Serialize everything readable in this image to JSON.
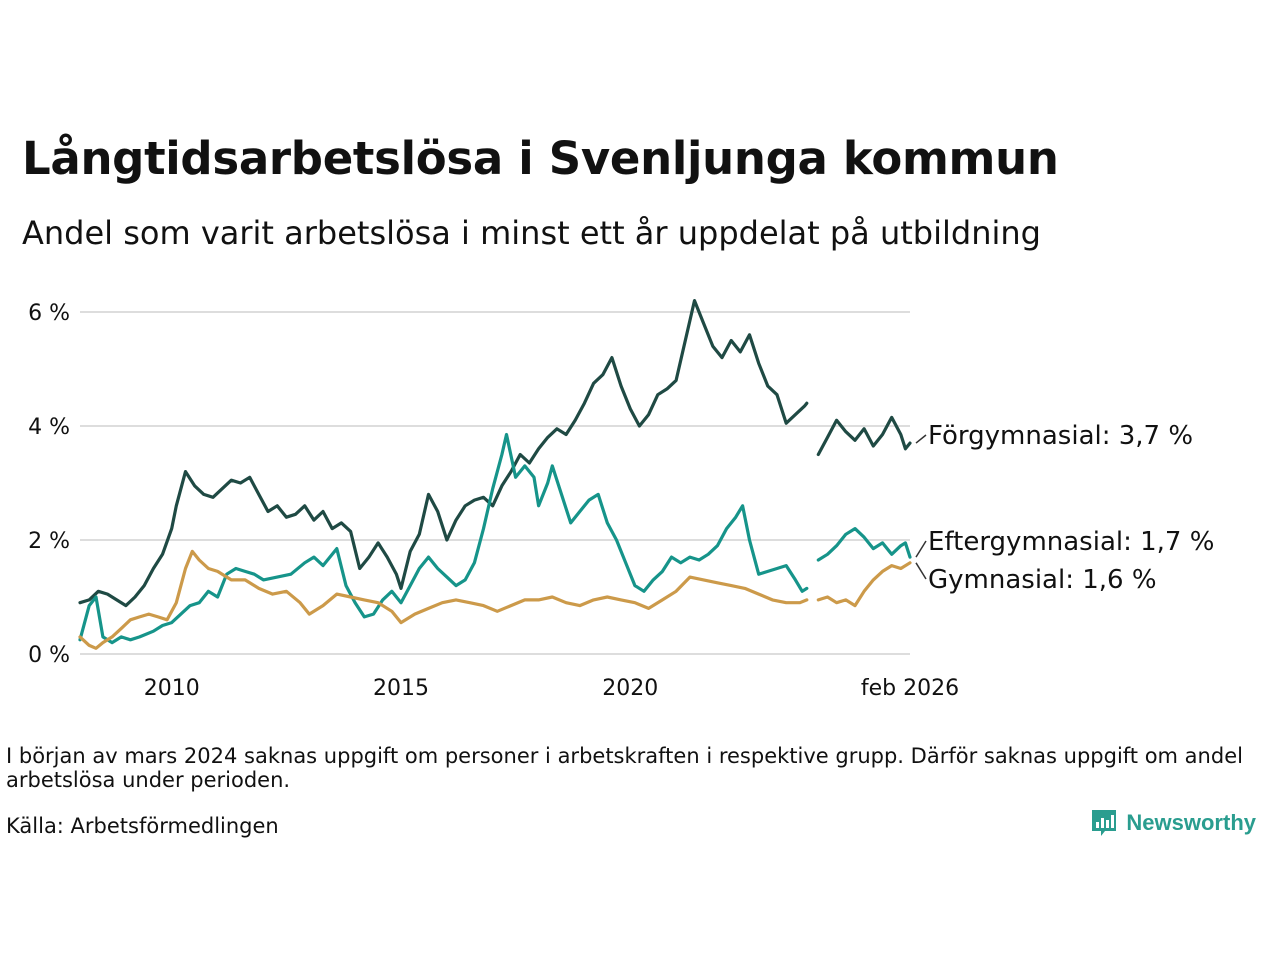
{
  "title": "Långtidsarbetslösa i Svenljunga kommun",
  "subtitle": "Andel som varit arbetslösa i minst ett år uppdelat på utbildning",
  "footnote": "I början av mars 2024 saknas uppgift om personer i arbetskraften i respektive grupp. Därför saknas uppgift om andel arbetslösa under perioden.",
  "source": "Källa: Arbetsförmedlingen",
  "brand": "Newsworthy",
  "colors": {
    "forgymnasial": "#1f4a44",
    "eftergymnasial": "#16948a",
    "gymnasial": "#cc9a4a",
    "grid": "#dddddd",
    "brand": "#2a9d8f"
  },
  "chart_data": {
    "type": "line",
    "title": "Långtidsarbetslösa i Svenljunga kommun",
    "subtitle": "Andel som varit arbetslösa i minst ett år uppdelat på utbildning",
    "xlabel": "",
    "ylabel": "",
    "xlim": [
      2008.0,
      2026.1
    ],
    "ylim": [
      0,
      6
    ],
    "grid": true,
    "y_ticks": [
      {
        "value": 0,
        "label": "0 %"
      },
      {
        "value": 2,
        "label": "2 %"
      },
      {
        "value": 4,
        "label": "4 %"
      },
      {
        "value": 6,
        "label": "6 %"
      }
    ],
    "x_ticks": [
      {
        "value": 2010,
        "label": "2010"
      },
      {
        "value": 2015,
        "label": "2015"
      },
      {
        "value": 2020,
        "label": "2020"
      },
      {
        "value": 2026.1,
        "label": "feb 2026"
      }
    ],
    "series": [
      {
        "name": "Förgymnasial",
        "end_label": "Förgymnasial: 3,7 %",
        "color": "#1f4a44",
        "points": [
          [
            2008.0,
            0.9
          ],
          [
            2008.2,
            0.95
          ],
          [
            2008.4,
            1.1
          ],
          [
            2008.6,
            1.05
          ],
          [
            2008.8,
            0.95
          ],
          [
            2009.0,
            0.85
          ],
          [
            2009.2,
            1.0
          ],
          [
            2009.4,
            1.2
          ],
          [
            2009.6,
            1.5
          ],
          [
            2009.8,
            1.75
          ],
          [
            2010.0,
            2.2
          ],
          [
            2010.1,
            2.6
          ],
          [
            2010.3,
            3.2
          ],
          [
            2010.5,
            2.95
          ],
          [
            2010.7,
            2.8
          ],
          [
            2010.9,
            2.75
          ],
          [
            2011.1,
            2.9
          ],
          [
            2011.3,
            3.05
          ],
          [
            2011.5,
            3.0
          ],
          [
            2011.7,
            3.1
          ],
          [
            2011.9,
            2.8
          ],
          [
            2012.1,
            2.5
          ],
          [
            2012.3,
            2.6
          ],
          [
            2012.5,
            2.4
          ],
          [
            2012.7,
            2.45
          ],
          [
            2012.9,
            2.6
          ],
          [
            2013.1,
            2.35
          ],
          [
            2013.3,
            2.5
          ],
          [
            2013.5,
            2.2
          ],
          [
            2013.7,
            2.3
          ],
          [
            2013.9,
            2.15
          ],
          [
            2014.1,
            1.5
          ],
          [
            2014.3,
            1.7
          ],
          [
            2014.5,
            1.95
          ],
          [
            2014.7,
            1.7
          ],
          [
            2014.9,
            1.4
          ],
          [
            2015.0,
            1.15
          ],
          [
            2015.2,
            1.8
          ],
          [
            2015.4,
            2.1
          ],
          [
            2015.6,
            2.8
          ],
          [
            2015.8,
            2.5
          ],
          [
            2016.0,
            2.0
          ],
          [
            2016.2,
            2.35
          ],
          [
            2016.4,
            2.6
          ],
          [
            2016.6,
            2.7
          ],
          [
            2016.8,
            2.75
          ],
          [
            2017.0,
            2.6
          ],
          [
            2017.2,
            2.95
          ],
          [
            2017.4,
            3.2
          ],
          [
            2017.6,
            3.5
          ],
          [
            2017.8,
            3.35
          ],
          [
            2018.0,
            3.6
          ],
          [
            2018.2,
            3.8
          ],
          [
            2018.4,
            3.95
          ],
          [
            2018.6,
            3.85
          ],
          [
            2018.8,
            4.1
          ],
          [
            2019.0,
            4.4
          ],
          [
            2019.2,
            4.75
          ],
          [
            2019.4,
            4.9
          ],
          [
            2019.6,
            5.2
          ],
          [
            2019.8,
            4.7
          ],
          [
            2020.0,
            4.3
          ],
          [
            2020.2,
            4.0
          ],
          [
            2020.4,
            4.2
          ],
          [
            2020.6,
            4.55
          ],
          [
            2020.8,
            4.65
          ],
          [
            2021.0,
            4.8
          ],
          [
            2021.2,
            5.5
          ],
          [
            2021.4,
            6.2
          ],
          [
            2021.6,
            5.8
          ],
          [
            2021.8,
            5.4
          ],
          [
            2022.0,
            5.2
          ],
          [
            2022.2,
            5.5
          ],
          [
            2022.4,
            5.3
          ],
          [
            2022.6,
            5.6
          ],
          [
            2022.8,
            5.1
          ],
          [
            2023.0,
            4.7
          ],
          [
            2023.2,
            4.55
          ],
          [
            2023.4,
            4.05
          ],
          [
            2023.6,
            4.2
          ],
          [
            2023.8,
            4.35
          ],
          [
            2023.85,
            4.4
          ],
          null,
          [
            2024.1,
            3.5
          ],
          [
            2024.3,
            3.8
          ],
          [
            2024.5,
            4.1
          ],
          [
            2024.7,
            3.9
          ],
          [
            2024.9,
            3.75
          ],
          [
            2025.1,
            3.95
          ],
          [
            2025.3,
            3.65
          ],
          [
            2025.5,
            3.85
          ],
          [
            2025.7,
            4.15
          ],
          [
            2025.9,
            3.85
          ],
          [
            2026.0,
            3.6
          ],
          [
            2026.1,
            3.7
          ]
        ]
      },
      {
        "name": "Eftergymnasial",
        "end_label": "Eftergymnasial: 1,7 %",
        "color": "#16948a",
        "points": [
          [
            2008.0,
            0.25
          ],
          [
            2008.2,
            0.85
          ],
          [
            2008.35,
            1.0
          ],
          [
            2008.5,
            0.3
          ],
          [
            2008.7,
            0.2
          ],
          [
            2008.9,
            0.3
          ],
          [
            2009.1,
            0.25
          ],
          [
            2009.3,
            0.3
          ],
          [
            2009.6,
            0.4
          ],
          [
            2009.8,
            0.5
          ],
          [
            2010.0,
            0.55
          ],
          [
            2010.2,
            0.7
          ],
          [
            2010.4,
            0.85
          ],
          [
            2010.6,
            0.9
          ],
          [
            2010.8,
            1.1
          ],
          [
            2011.0,
            1.0
          ],
          [
            2011.2,
            1.4
          ],
          [
            2011.4,
            1.5
          ],
          [
            2011.6,
            1.45
          ],
          [
            2011.8,
            1.4
          ],
          [
            2012.0,
            1.3
          ],
          [
            2012.3,
            1.35
          ],
          [
            2012.6,
            1.4
          ],
          [
            2012.9,
            1.6
          ],
          [
            2013.1,
            1.7
          ],
          [
            2013.3,
            1.55
          ],
          [
            2013.6,
            1.85
          ],
          [
            2013.8,
            1.2
          ],
          [
            2014.0,
            0.9
          ],
          [
            2014.2,
            0.65
          ],
          [
            2014.4,
            0.7
          ],
          [
            2014.6,
            0.95
          ],
          [
            2014.8,
            1.1
          ],
          [
            2015.0,
            0.9
          ],
          [
            2015.2,
            1.2
          ],
          [
            2015.4,
            1.5
          ],
          [
            2015.6,
            1.7
          ],
          [
            2015.8,
            1.5
          ],
          [
            2016.0,
            1.35
          ],
          [
            2016.2,
            1.2
          ],
          [
            2016.4,
            1.3
          ],
          [
            2016.6,
            1.6
          ],
          [
            2016.8,
            2.2
          ],
          [
            2017.0,
            2.9
          ],
          [
            2017.2,
            3.5
          ],
          [
            2017.3,
            3.85
          ],
          [
            2017.5,
            3.1
          ],
          [
            2017.7,
            3.3
          ],
          [
            2017.9,
            3.1
          ],
          [
            2018.0,
            2.6
          ],
          [
            2018.2,
            3.0
          ],
          [
            2018.3,
            3.3
          ],
          [
            2018.5,
            2.8
          ],
          [
            2018.7,
            2.3
          ],
          [
            2018.9,
            2.5
          ],
          [
            2019.1,
            2.7
          ],
          [
            2019.3,
            2.8
          ],
          [
            2019.5,
            2.3
          ],
          [
            2019.7,
            2.0
          ],
          [
            2019.9,
            1.6
          ],
          [
            2020.1,
            1.2
          ],
          [
            2020.3,
            1.1
          ],
          [
            2020.5,
            1.3
          ],
          [
            2020.7,
            1.45
          ],
          [
            2020.9,
            1.7
          ],
          [
            2021.1,
            1.6
          ],
          [
            2021.3,
            1.7
          ],
          [
            2021.5,
            1.65
          ],
          [
            2021.7,
            1.75
          ],
          [
            2021.9,
            1.9
          ],
          [
            2022.1,
            2.2
          ],
          [
            2022.3,
            2.4
          ],
          [
            2022.45,
            2.6
          ],
          [
            2022.6,
            2.0
          ],
          [
            2022.8,
            1.4
          ],
          [
            2023.0,
            1.45
          ],
          [
            2023.2,
            1.5
          ],
          [
            2023.4,
            1.55
          ],
          [
            2023.6,
            1.3
          ],
          [
            2023.75,
            1.1
          ],
          [
            2023.85,
            1.15
          ],
          null,
          [
            2024.1,
            1.65
          ],
          [
            2024.3,
            1.75
          ],
          [
            2024.5,
            1.9
          ],
          [
            2024.7,
            2.1
          ],
          [
            2024.9,
            2.2
          ],
          [
            2025.1,
            2.05
          ],
          [
            2025.3,
            1.85
          ],
          [
            2025.5,
            1.95
          ],
          [
            2025.7,
            1.75
          ],
          [
            2025.9,
            1.9
          ],
          [
            2026.0,
            1.95
          ],
          [
            2026.1,
            1.7
          ]
        ]
      },
      {
        "name": "Gymnasial",
        "end_label": "Gymnasial: 1,6 %",
        "color": "#cc9a4a",
        "points": [
          [
            2008.0,
            0.3
          ],
          [
            2008.2,
            0.15
          ],
          [
            2008.35,
            0.1
          ],
          [
            2008.5,
            0.2
          ],
          [
            2008.7,
            0.3
          ],
          [
            2008.9,
            0.45
          ],
          [
            2009.1,
            0.6
          ],
          [
            2009.3,
            0.65
          ],
          [
            2009.5,
            0.7
          ],
          [
            2009.7,
            0.65
          ],
          [
            2009.9,
            0.6
          ],
          [
            2010.1,
            0.9
          ],
          [
            2010.3,
            1.5
          ],
          [
            2010.45,
            1.8
          ],
          [
            2010.6,
            1.65
          ],
          [
            2010.8,
            1.5
          ],
          [
            2011.0,
            1.45
          ],
          [
            2011.3,
            1.3
          ],
          [
            2011.6,
            1.3
          ],
          [
            2011.9,
            1.15
          ],
          [
            2012.2,
            1.05
          ],
          [
            2012.5,
            1.1
          ],
          [
            2012.8,
            0.9
          ],
          [
            2013.0,
            0.7
          ],
          [
            2013.3,
            0.85
          ],
          [
            2013.6,
            1.05
          ],
          [
            2013.9,
            1.0
          ],
          [
            2014.2,
            0.95
          ],
          [
            2014.5,
            0.9
          ],
          [
            2014.8,
            0.75
          ],
          [
            2015.0,
            0.55
          ],
          [
            2015.3,
            0.7
          ],
          [
            2015.6,
            0.8
          ],
          [
            2015.9,
            0.9
          ],
          [
            2016.2,
            0.95
          ],
          [
            2016.5,
            0.9
          ],
          [
            2016.8,
            0.85
          ],
          [
            2017.1,
            0.75
          ],
          [
            2017.4,
            0.85
          ],
          [
            2017.7,
            0.95
          ],
          [
            2018.0,
            0.95
          ],
          [
            2018.3,
            1.0
          ],
          [
            2018.6,
            0.9
          ],
          [
            2018.9,
            0.85
          ],
          [
            2019.2,
            0.95
          ],
          [
            2019.5,
            1.0
          ],
          [
            2019.8,
            0.95
          ],
          [
            2020.1,
            0.9
          ],
          [
            2020.4,
            0.8
          ],
          [
            2020.7,
            0.95
          ],
          [
            2021.0,
            1.1
          ],
          [
            2021.3,
            1.35
          ],
          [
            2021.6,
            1.3
          ],
          [
            2021.9,
            1.25
          ],
          [
            2022.2,
            1.2
          ],
          [
            2022.5,
            1.15
          ],
          [
            2022.8,
            1.05
          ],
          [
            2023.1,
            0.95
          ],
          [
            2023.4,
            0.9
          ],
          [
            2023.7,
            0.9
          ],
          [
            2023.85,
            0.95
          ],
          null,
          [
            2024.1,
            0.95
          ],
          [
            2024.3,
            1.0
          ],
          [
            2024.5,
            0.9
          ],
          [
            2024.7,
            0.95
          ],
          [
            2024.9,
            0.85
          ],
          [
            2025.1,
            1.1
          ],
          [
            2025.3,
            1.3
          ],
          [
            2025.5,
            1.45
          ],
          [
            2025.7,
            1.55
          ],
          [
            2025.9,
            1.5
          ],
          [
            2026.1,
            1.6
          ]
        ]
      }
    ]
  }
}
